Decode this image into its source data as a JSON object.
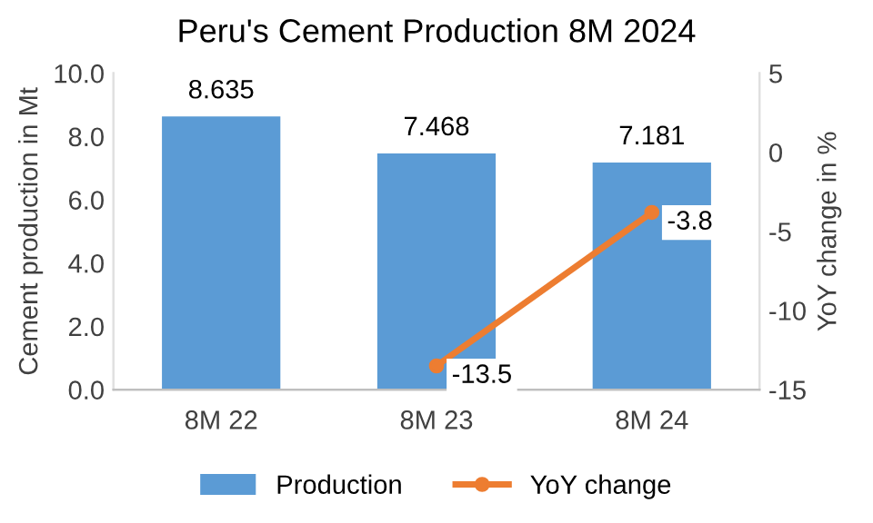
{
  "chart_data": {
    "type": "bar",
    "title": "Peru's Cement Production 8M 2024",
    "categories": [
      "8M 22",
      "8M 23",
      "8M 24"
    ],
    "ylabel": "Cement production in Mt",
    "y2label": "YoY change in %",
    "series": [
      {
        "name": "Production",
        "color": "#5b9bd5",
        "values": [
          8.635,
          7.468,
          7.181
        ]
      },
      {
        "name": "YoY change",
        "type": "line",
        "axis": "y2",
        "color": "#ed7d31",
        "marker": "circle",
        "values": [
          null,
          -13.5,
          -3.8
        ]
      }
    ],
    "ylim": [
      0,
      10
    ],
    "yticks": [
      {
        "value": 0,
        "label": "0.0"
      },
      {
        "value": 2,
        "label": "2.0"
      },
      {
        "value": 4,
        "label": "4.0"
      },
      {
        "value": 6,
        "label": "6.0"
      },
      {
        "value": 8,
        "label": "8.0"
      },
      {
        "value": 10,
        "label": "10.0"
      }
    ],
    "y2lim": [
      -15,
      5
    ],
    "y2ticks": [
      -15,
      -10,
      -5,
      0,
      5
    ],
    "data_labels": true,
    "legend": "bottom",
    "grid": false
  }
}
